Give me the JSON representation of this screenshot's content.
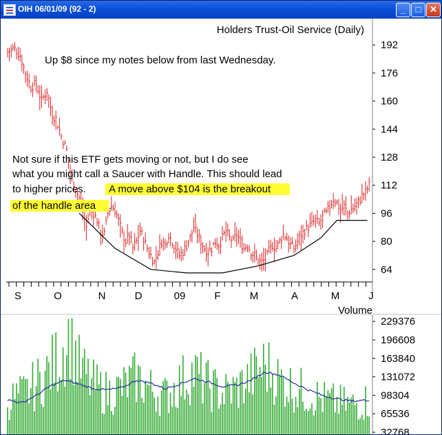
{
  "window": {
    "title": "OIH 06/01/09 (92 - 2)",
    "buttons": {
      "minimize": "_",
      "maximize": "□",
      "close": "✕"
    },
    "icons": {
      "app": "chart-app-icon"
    }
  },
  "chart_data": [
    {
      "type": "line",
      "title": "Holders Trust-Oil Service (Daily)",
      "ylim": [
        60,
        196
      ],
      "y_ticks": [
        "192",
        "176",
        "160",
        "144",
        "128",
        "112",
        "96",
        "80",
        "64"
      ],
      "x_ticks": [
        "S",
        "O",
        "N",
        "D",
        "09",
        "F",
        "M",
        "A",
        "M",
        "J"
      ],
      "series": [
        {
          "style": "ohlc-bars",
          "color": "#d62020",
          "anchors": [
            [
              0,
              188
            ],
            [
              4,
              190
            ],
            [
              7,
              186
            ],
            [
              10,
              176
            ],
            [
              13,
              168
            ],
            [
              16,
              170
            ],
            [
              19,
              160
            ],
            [
              22,
              166
            ],
            [
              25,
              152
            ],
            [
              27,
              150
            ],
            [
              30,
              140
            ],
            [
              33,
              132
            ],
            [
              35,
              120
            ],
            [
              38,
              110
            ],
            [
              41,
              102
            ],
            [
              44,
              88
            ],
            [
              46,
              98
            ],
            [
              48,
              96
            ],
            [
              50,
              92
            ],
            [
              52,
              85
            ],
            [
              54,
              84
            ],
            [
              56,
              96
            ],
            [
              58,
              100
            ],
            [
              60,
              98
            ],
            [
              62,
              92
            ],
            [
              64,
              85
            ],
            [
              66,
              80
            ],
            [
              68,
              84
            ],
            [
              70,
              76
            ],
            [
              72,
              80
            ],
            [
              74,
              86
            ],
            [
              76,
              82
            ],
            [
              78,
              76
            ],
            [
              80,
              72
            ],
            [
              82,
              68
            ],
            [
              84,
              74
            ],
            [
              86,
              80
            ],
            [
              88,
              78
            ],
            [
              90,
              84
            ],
            [
              92,
              80
            ],
            [
              94,
              76
            ],
            [
              96,
              72
            ],
            [
              98,
              74
            ],
            [
              100,
              78
            ],
            [
              102,
              82
            ],
            [
              104,
              88
            ],
            [
              106,
              84
            ],
            [
              108,
              80
            ],
            [
              110,
              76
            ],
            [
              112,
              74
            ],
            [
              114,
              76
            ],
            [
              116,
              80
            ],
            [
              118,
              78
            ],
            [
              120,
              82
            ],
            [
              122,
              86
            ],
            [
              124,
              82
            ],
            [
              126,
              80
            ],
            [
              128,
              84
            ],
            [
              130,
              80
            ],
            [
              132,
              76
            ],
            [
              134,
              78
            ],
            [
              136,
              74
            ],
            [
              138,
              72
            ],
            [
              140,
              70
            ],
            [
              142,
              68
            ],
            [
              144,
              70
            ],
            [
              146,
              74
            ],
            [
              148,
              78
            ],
            [
              150,
              76
            ],
            [
              152,
              80
            ],
            [
              154,
              84
            ],
            [
              156,
              82
            ],
            [
              158,
              78
            ],
            [
              160,
              76
            ],
            [
              162,
              80
            ],
            [
              164,
              84
            ],
            [
              166,
              86
            ],
            [
              168,
              88
            ],
            [
              170,
              90
            ],
            [
              172,
              92
            ],
            [
              174,
              90
            ],
            [
              176,
              94
            ],
            [
              178,
              96
            ],
            [
              180,
              100
            ],
            [
              182,
              104
            ],
            [
              184,
              102
            ],
            [
              186,
              98
            ],
            [
              188,
              100
            ],
            [
              190,
              96
            ],
            [
              192,
              98
            ],
            [
              194,
              100
            ],
            [
              196,
              102
            ],
            [
              198,
              106
            ],
            [
              200,
              108
            ],
            [
              202,
              112
            ]
          ]
        },
        {
          "style": "line",
          "color": "#000000",
          "points": [
            [
              40,
              96
            ],
            [
              60,
              76
            ],
            [
              80,
              64
            ],
            [
              100,
              62
            ],
            [
              120,
              62
            ],
            [
              140,
              66
            ],
            [
              160,
              72
            ],
            [
              175,
              82
            ],
            [
              184,
              92
            ],
            [
              192,
              92
            ],
            [
              201,
              92
            ]
          ]
        }
      ],
      "annotations": [
        "Up $8 since my notes below from last Wednesday.",
        "Not sure if this ETF gets moving or not, but I do see",
        "what you might call a Saucer with Handle. This should lead",
        "to higher prices.",
        "A move above $104 is the breakout",
        "of the handle area",
        "."
      ],
      "highlight_color": "#ffff33",
      "grid": false
    },
    {
      "type": "bar",
      "title": "Volume",
      "ylim": [
        32768,
        237000
      ],
      "y_ticks": [
        "229376",
        "196608",
        "163840",
        "131072",
        "98304",
        "65536",
        "32768"
      ],
      "bar_color": "#33aa33",
      "avg_color": "#2030a0",
      "anchors": [
        [
          0,
          95000
        ],
        [
          10,
          110000
        ],
        [
          20,
          140000
        ],
        [
          28,
          175000
        ],
        [
          35,
          225000
        ],
        [
          40,
          160000
        ],
        [
          48,
          125000
        ],
        [
          56,
          110000
        ],
        [
          64,
          120000
        ],
        [
          72,
          140000
        ],
        [
          80,
          118000
        ],
        [
          88,
          105000
        ],
        [
          96,
          130000
        ],
        [
          104,
          150000
        ],
        [
          112,
          125000
        ],
        [
          120,
          110000
        ],
        [
          128,
          118000
        ],
        [
          136,
          140000
        ],
        [
          144,
          165000
        ],
        [
          152,
          135000
        ],
        [
          160,
          120000
        ],
        [
          168,
          110000
        ],
        [
          176,
          98000
        ],
        [
          184,
          92000
        ],
        [
          192,
          88000
        ],
        [
          202,
          96000
        ]
      ],
      "avg_anchors": [
        [
          0,
          90000
        ],
        [
          8,
          85000
        ],
        [
          16,
          98000
        ],
        [
          24,
          115000
        ],
        [
          32,
          125000
        ],
        [
          40,
          118000
        ],
        [
          48,
          110000
        ],
        [
          56,
          108000
        ],
        [
          64,
          112000
        ],
        [
          72,
          125000
        ],
        [
          80,
          120000
        ],
        [
          88,
          110000
        ],
        [
          96,
          118000
        ],
        [
          104,
          128000
        ],
        [
          112,
          122000
        ],
        [
          120,
          114000
        ],
        [
          128,
          116000
        ],
        [
          136,
          125000
        ],
        [
          144,
          140000
        ],
        [
          152,
          134000
        ],
        [
          160,
          120000
        ],
        [
          168,
          108000
        ],
        [
          176,
          98000
        ],
        [
          184,
          92000
        ],
        [
          192,
          88000
        ],
        [
          202,
          90000
        ]
      ]
    }
  ]
}
